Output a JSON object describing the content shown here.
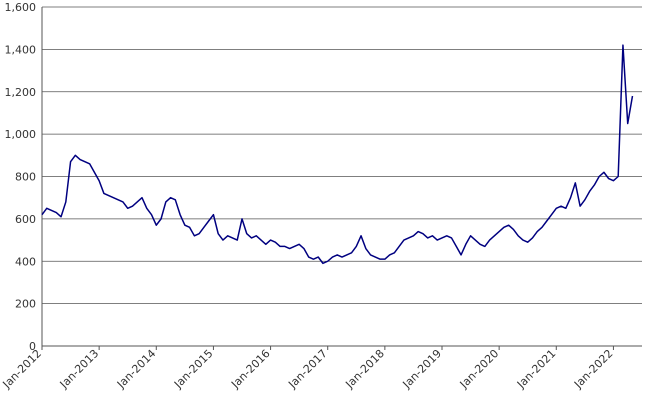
{
  "chart_data": {
    "type": "line",
    "x": [
      "2012-01",
      "2012-02",
      "2012-03",
      "2012-04",
      "2012-05",
      "2012-06",
      "2012-07",
      "2012-08",
      "2012-09",
      "2012-10",
      "2012-11",
      "2012-12",
      "2013-01",
      "2013-02",
      "2013-03",
      "2013-04",
      "2013-05",
      "2013-06",
      "2013-07",
      "2013-08",
      "2013-09",
      "2013-10",
      "2013-11",
      "2013-12",
      "2014-01",
      "2014-02",
      "2014-03",
      "2014-04",
      "2014-05",
      "2014-06",
      "2014-07",
      "2014-08",
      "2014-09",
      "2014-10",
      "2014-11",
      "2014-12",
      "2015-01",
      "2015-02",
      "2015-03",
      "2015-04",
      "2015-05",
      "2015-06",
      "2015-07",
      "2015-08",
      "2015-09",
      "2015-10",
      "2015-11",
      "2015-12",
      "2016-01",
      "2016-02",
      "2016-03",
      "2016-04",
      "2016-05",
      "2016-06",
      "2016-07",
      "2016-08",
      "2016-09",
      "2016-10",
      "2016-11",
      "2016-12",
      "2017-01",
      "2017-02",
      "2017-03",
      "2017-04",
      "2017-05",
      "2017-06",
      "2017-07",
      "2017-08",
      "2017-09",
      "2017-10",
      "2017-11",
      "2017-12",
      "2018-01",
      "2018-02",
      "2018-03",
      "2018-04",
      "2018-05",
      "2018-06",
      "2018-07",
      "2018-08",
      "2018-09",
      "2018-10",
      "2018-11",
      "2018-12",
      "2019-01",
      "2019-02",
      "2019-03",
      "2019-04",
      "2019-05",
      "2019-06",
      "2019-07",
      "2019-08",
      "2019-09",
      "2019-10",
      "2019-11",
      "2019-12",
      "2020-01",
      "2020-02",
      "2020-03",
      "2020-04",
      "2020-05",
      "2020-06",
      "2020-07",
      "2020-08",
      "2020-09",
      "2020-10",
      "2020-11",
      "2020-12",
      "2021-01",
      "2021-02",
      "2021-03",
      "2021-04",
      "2021-05",
      "2021-06",
      "2021-07",
      "2021-08",
      "2021-09",
      "2021-10",
      "2021-11",
      "2021-12",
      "2022-01",
      "2022-02",
      "2022-03",
      "2022-04",
      "2022-05"
    ],
    "series": [
      {
        "color": "#000080",
        "values": [
          620,
          650,
          640,
          630,
          610,
          680,
          870,
          900,
          880,
          870,
          860,
          820,
          780,
          720,
          710,
          700,
          690,
          680,
          650,
          660,
          680,
          700,
          650,
          620,
          570,
          600,
          680,
          700,
          690,
          620,
          570,
          560,
          520,
          530,
          560,
          590,
          620,
          530,
          500,
          520,
          510,
          500,
          600,
          530,
          510,
          520,
          500,
          480,
          500,
          490,
          470,
          470,
          460,
          470,
          480,
          460,
          420,
          410,
          420,
          390,
          400,
          420,
          430,
          420,
          430,
          440,
          470,
          520,
          460,
          430,
          420,
          410,
          410,
          430,
          440,
          470,
          500,
          510,
          520,
          540,
          530,
          510,
          520,
          500,
          510,
          520,
          510,
          470,
          430,
          480,
          520,
          500,
          480,
          470,
          500,
          520,
          540,
          560,
          570,
          550,
          520,
          500,
          490,
          510,
          540,
          560,
          590,
          620,
          650,
          660,
          650,
          700,
          770,
          660,
          690,
          730,
          760,
          800,
          820,
          790,
          780,
          800,
          1420,
          1050,
          1180
        ]
      }
    ],
    "xlim": [
      "2012-01",
      "2022-07"
    ],
    "xticks": [
      {
        "value": "2012-01",
        "label": "Jan-2012"
      },
      {
        "value": "2013-01",
        "label": "Jan-2013"
      },
      {
        "value": "2014-01",
        "label": "Jan-2014"
      },
      {
        "value": "2015-01",
        "label": "Jan-2015"
      },
      {
        "value": "2016-01",
        "label": "Jan-2016"
      },
      {
        "value": "2017-01",
        "label": "Jan-2017"
      },
      {
        "value": "2018-01",
        "label": "Jan-2018"
      },
      {
        "value": "2019-01",
        "label": "Jan-2019"
      },
      {
        "value": "2020-01",
        "label": "Jan-2020"
      },
      {
        "value": "2021-01",
        "label": "Jan-2021"
      },
      {
        "value": "2022-01",
        "label": "Jan-2022"
      }
    ],
    "ylim": [
      0,
      1600
    ],
    "yticks": [
      0,
      200,
      400,
      600,
      800,
      {
        "value": 1000,
        "label": "1,000"
      },
      {
        "value": 1200,
        "label": "1,200"
      },
      {
        "value": 1400,
        "label": "1,400"
      },
      {
        "value": 1600,
        "label": "1,600"
      }
    ],
    "grid": true
  }
}
